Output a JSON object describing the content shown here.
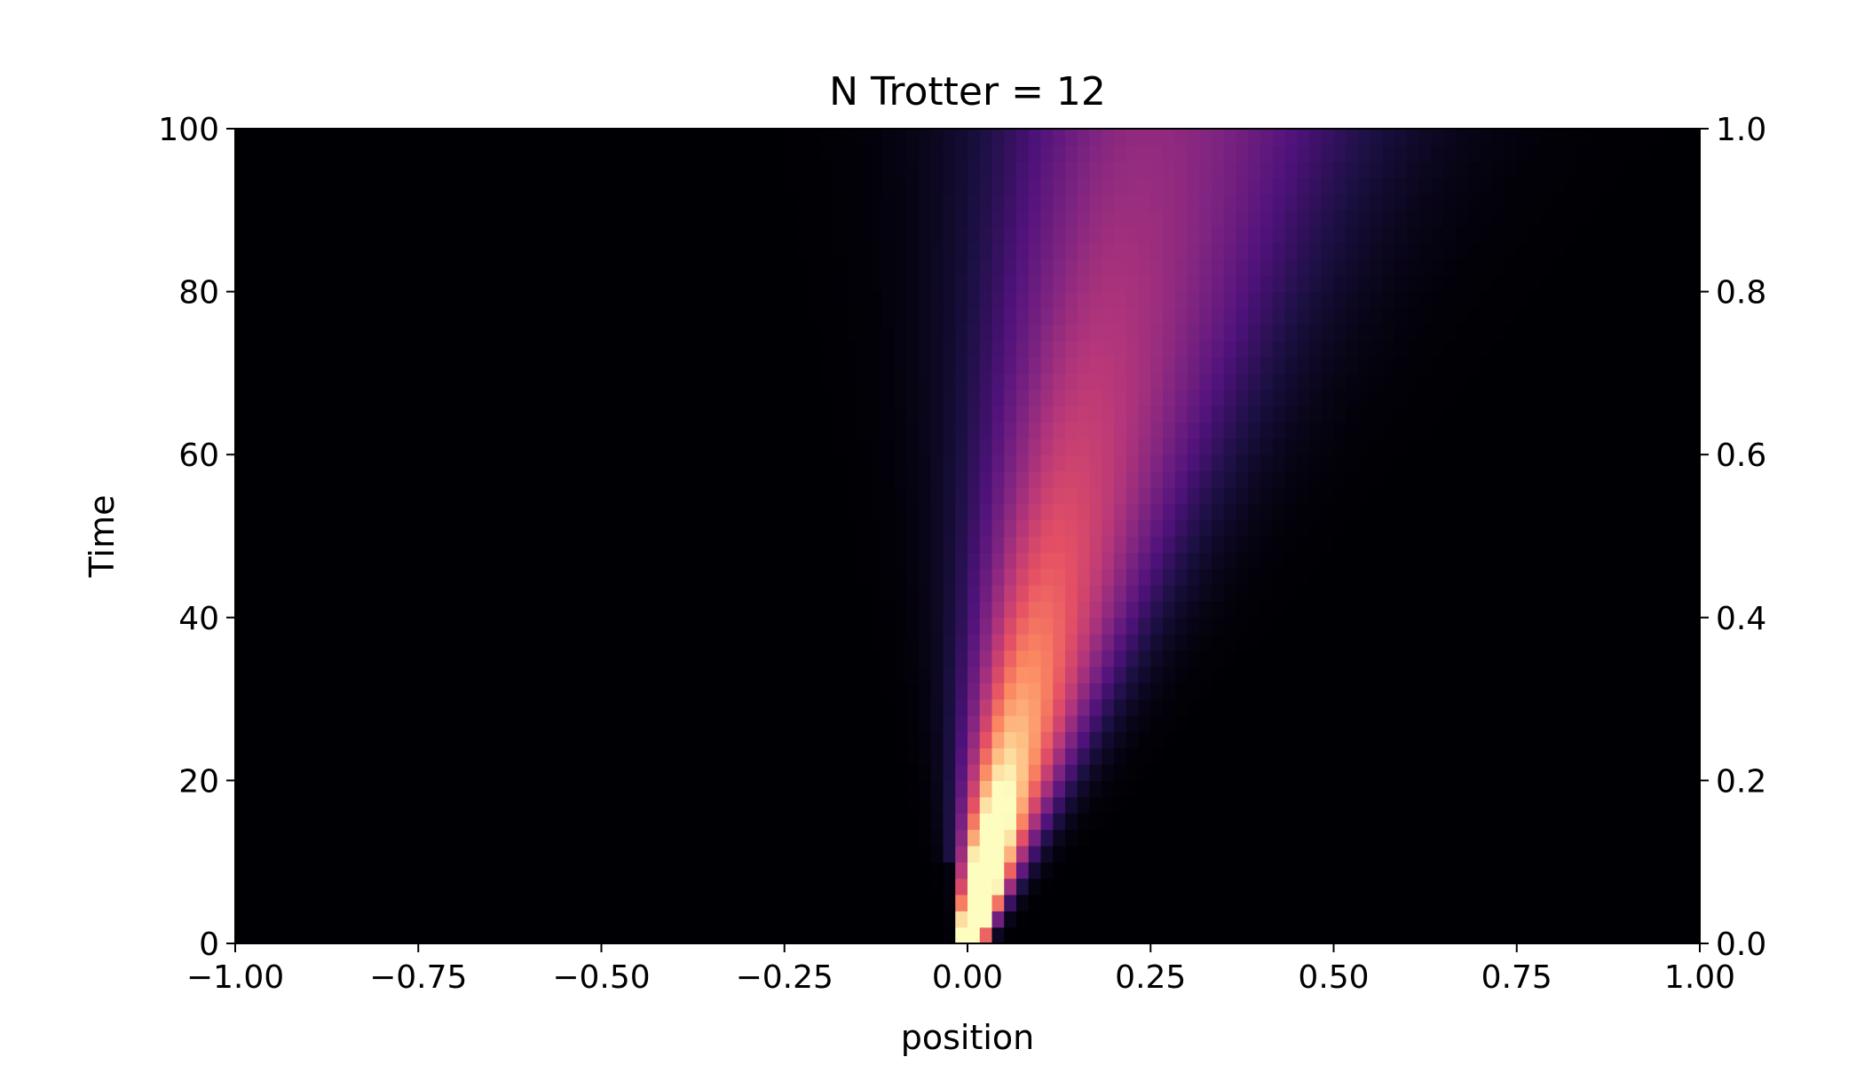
{
  "chart_data": {
    "type": "heatmap",
    "title": "N Trotter = 12",
    "xlabel": "position",
    "ylabel": "Time",
    "xlim": [
      -1.0,
      1.0
    ],
    "ylim": [
      0,
      100
    ],
    "y2lim": [
      0.0,
      1.0
    ],
    "x_ticks": [
      -1.0,
      -0.75,
      -0.5,
      -0.25,
      0.0,
      0.25,
      0.5,
      0.75,
      1.0
    ],
    "x_tick_labels": [
      "−1.00",
      "−0.75",
      "−0.50",
      "−0.25",
      "0.00",
      "0.25",
      "0.50",
      "0.75",
      "1.00"
    ],
    "y_ticks": [
      0,
      20,
      40,
      60,
      80,
      100
    ],
    "y_tick_labels": [
      "0",
      "20",
      "40",
      "60",
      "80",
      "100"
    ],
    "y2_ticks": [
      0.0,
      0.2,
      0.4,
      0.6,
      0.8,
      1.0
    ],
    "y2_tick_labels": [
      "0.0",
      "0.2",
      "0.4",
      "0.6",
      "0.8",
      "1.0"
    ],
    "colormap": "magma",
    "grid": false,
    "legend": "none",
    "grid_resolution": {
      "x_cells": 120,
      "time_steps": 50
    },
    "intensity_model": {
      "description": "drifting, spreading wave packet; values on a 0-1 color scale, saturating near origin",
      "start_position": 0.0,
      "drift_per_time": 0.00245,
      "initial_width": 0.018,
      "spread_per_time": 0.0027,
      "skew": 1.4,
      "peak_scale": 2.4,
      "decay_exponent": 1.15
    }
  }
}
